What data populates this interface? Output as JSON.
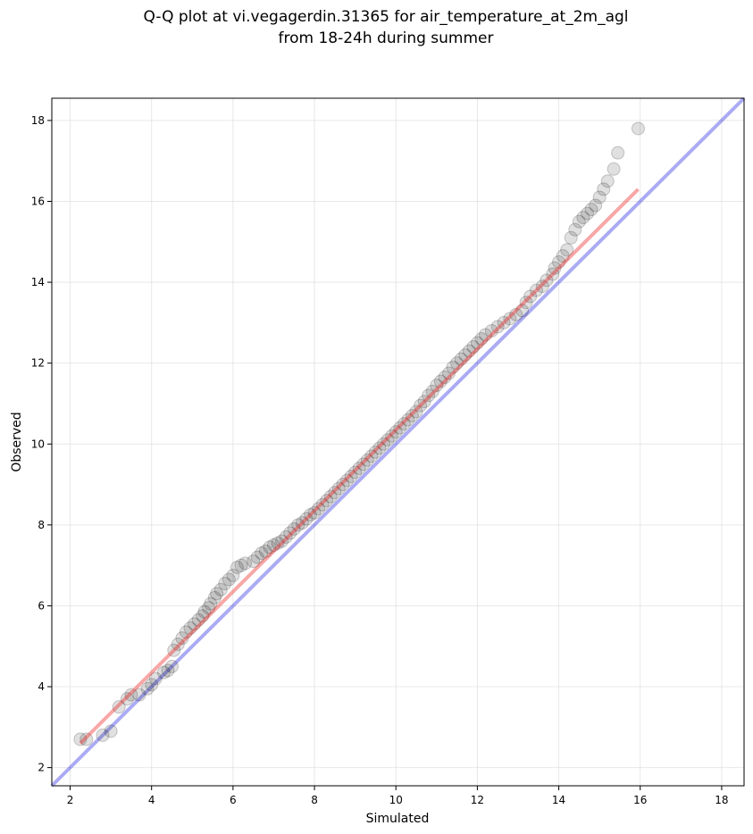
{
  "chart_data": {
    "type": "scatter",
    "title": [
      "Q-Q plot at vi.vegagerdin.31365 for air_temperature_at_2m_agl",
      "from 18-24h during summer"
    ],
    "xlabel": "Simulated",
    "ylabel": "Observed",
    "xlim": [
      1.55,
      18.55
    ],
    "ylim": [
      1.55,
      18.55
    ],
    "xticks": [
      2,
      4,
      6,
      8,
      10,
      12,
      14,
      16,
      18
    ],
    "yticks": [
      2,
      4,
      6,
      8,
      10,
      12,
      14,
      16,
      18
    ],
    "grid": true,
    "series": [
      {
        "x": [
          2.25,
          2.4,
          2.8,
          3.0,
          3.2,
          3.4,
          3.5,
          3.7,
          3.9,
          4.0,
          4.1,
          4.3,
          4.4,
          4.5,
          4.55,
          4.65,
          4.75,
          4.85,
          4.95,
          5.05,
          5.15,
          5.25,
          5.3,
          5.4,
          5.45,
          5.55,
          5.6,
          5.7,
          5.8,
          5.9,
          6.0,
          6.1,
          6.2,
          6.3,
          6.5,
          6.6,
          6.7,
          6.8,
          6.9,
          7.0,
          7.1,
          7.2,
          7.3,
          7.4,
          7.5,
          7.6,
          7.7,
          7.8,
          7.9,
          8.0,
          8.1,
          8.2,
          8.3,
          8.4,
          8.5,
          8.6,
          8.7,
          8.8,
          8.9,
          9.0,
          9.1,
          9.2,
          9.3,
          9.4,
          9.5,
          9.6,
          9.7,
          9.8,
          9.9,
          10.0,
          10.1,
          10.2,
          10.3,
          10.4,
          10.5,
          10.6,
          10.7,
          10.8,
          10.9,
          11.0,
          11.1,
          11.2,
          11.3,
          11.4,
          11.5,
          11.6,
          11.7,
          11.8,
          11.9,
          12.0,
          12.1,
          12.2,
          12.35,
          12.5,
          12.65,
          12.8,
          12.95,
          13.1,
          13.2,
          13.3,
          13.45,
          13.6,
          13.7,
          13.85,
          13.9,
          14.0,
          14.1,
          14.2,
          14.3,
          14.4,
          14.5,
          14.6,
          14.7,
          14.8,
          14.9,
          15.0,
          15.1,
          15.2,
          15.35,
          15.45,
          15.95
        ],
        "y": [
          2.7,
          2.7,
          2.8,
          2.9,
          3.5,
          3.7,
          3.8,
          3.8,
          3.95,
          4.05,
          4.2,
          4.35,
          4.4,
          4.5,
          4.9,
          5.05,
          5.2,
          5.35,
          5.45,
          5.55,
          5.65,
          5.75,
          5.85,
          5.95,
          6.05,
          6.2,
          6.3,
          6.4,
          6.55,
          6.65,
          6.75,
          6.95,
          7.0,
          7.05,
          7.1,
          7.2,
          7.3,
          7.35,
          7.45,
          7.5,
          7.55,
          7.6,
          7.7,
          7.8,
          7.9,
          8.0,
          8.05,
          8.15,
          8.25,
          8.3,
          8.4,
          8.5,
          8.6,
          8.7,
          8.8,
          8.9,
          9.0,
          9.1,
          9.2,
          9.3,
          9.4,
          9.5,
          9.6,
          9.7,
          9.8,
          9.9,
          10.0,
          10.1,
          10.2,
          10.3,
          10.4,
          10.5,
          10.6,
          10.7,
          10.8,
          10.95,
          11.05,
          11.2,
          11.3,
          11.45,
          11.55,
          11.65,
          11.75,
          11.9,
          12.0,
          12.1,
          12.2,
          12.3,
          12.4,
          12.5,
          12.6,
          12.7,
          12.8,
          12.9,
          13.0,
          13.1,
          13.2,
          13.3,
          13.5,
          13.65,
          13.8,
          13.9,
          14.05,
          14.2,
          14.35,
          14.5,
          14.65,
          14.8,
          15.1,
          15.3,
          15.5,
          15.6,
          15.7,
          15.8,
          15.9,
          16.1,
          16.3,
          16.5,
          16.8,
          17.2,
          17.8
        ]
      }
    ],
    "reference_line": {
      "x": [
        1.55,
        18.55
      ],
      "y": [
        1.55,
        18.55
      ],
      "color": "#0000dd"
    },
    "fit_line": {
      "x": [
        2.25,
        15.95
      ],
      "y": [
        2.6,
        16.3
      ],
      "color": "#ee2222"
    },
    "marker_color": "#000000"
  }
}
